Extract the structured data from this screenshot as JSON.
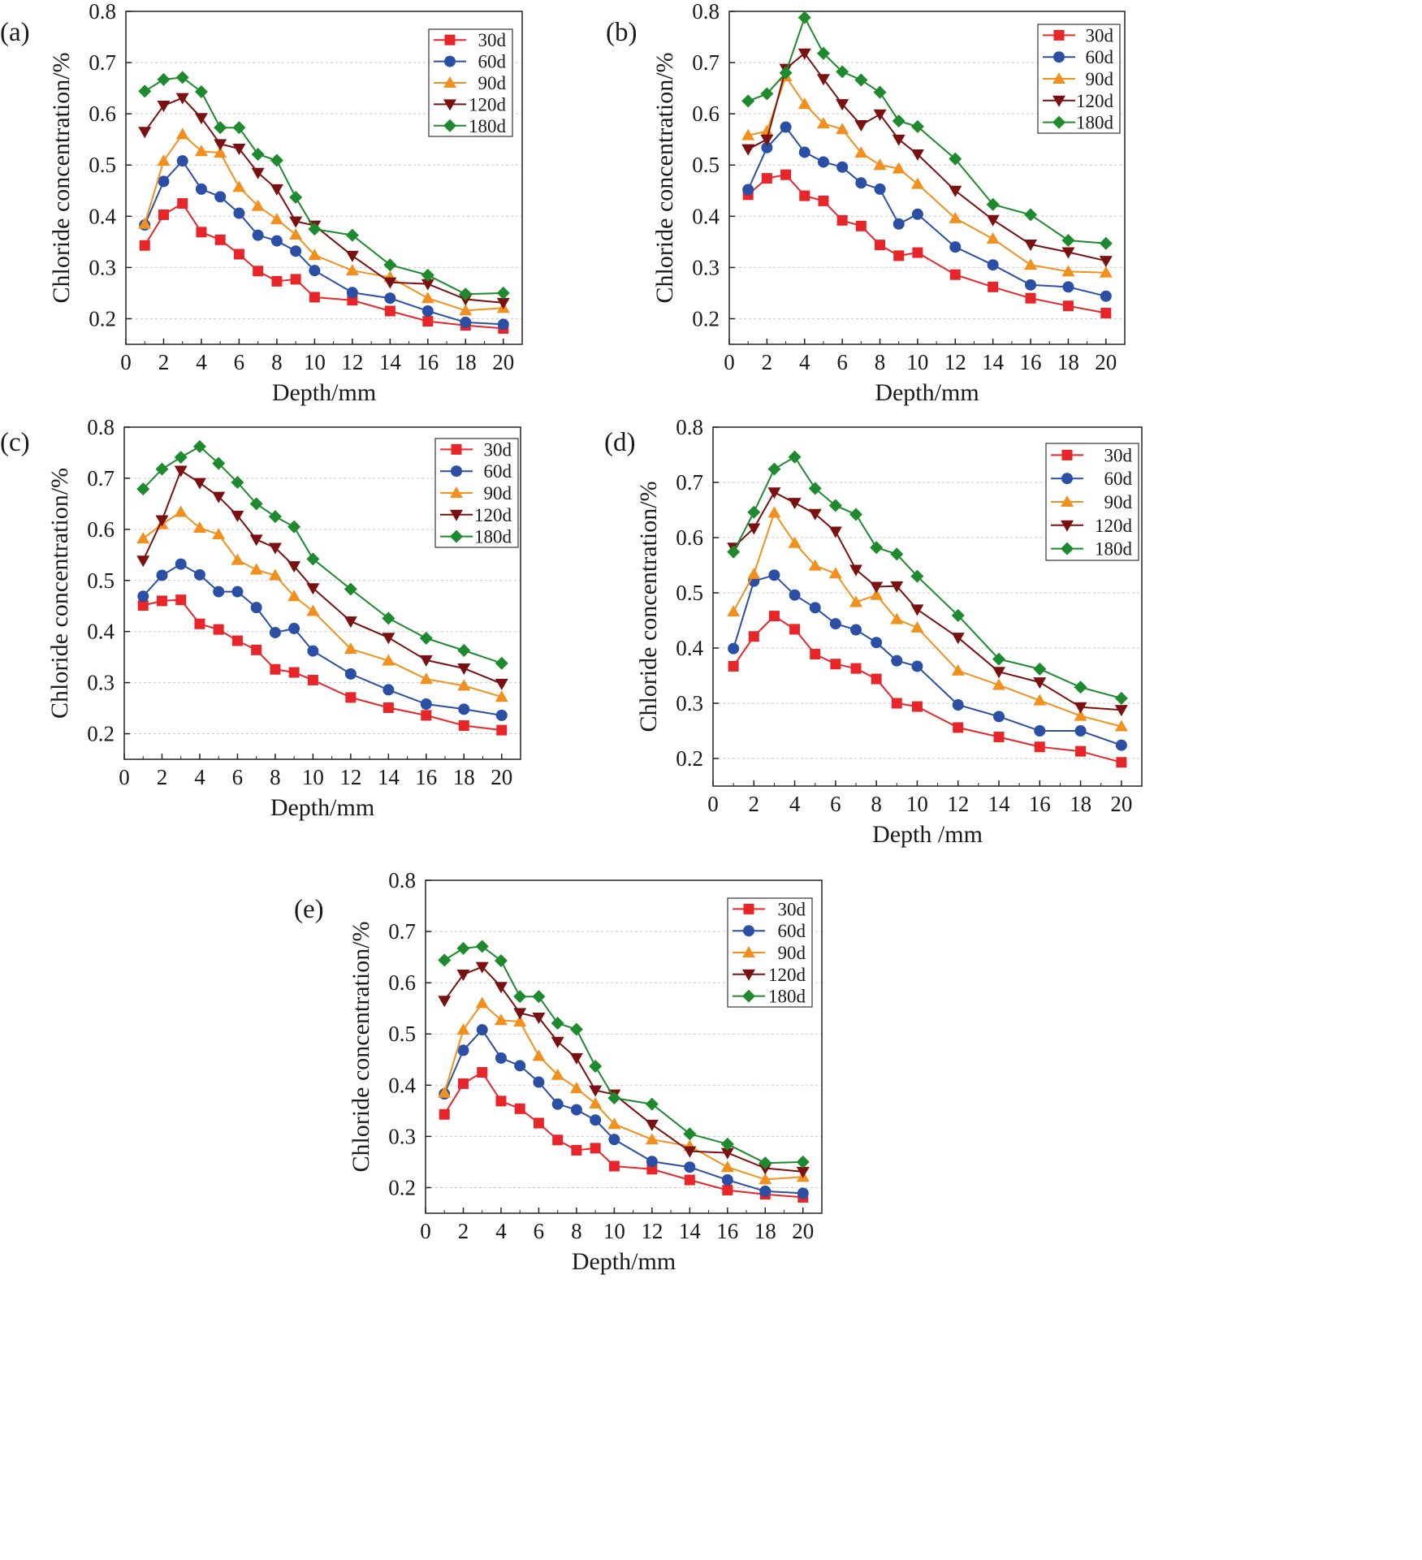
{
  "figure": {
    "series_colors": {
      "30d": "#e8262a",
      "60d": "#2a4fa5",
      "90d": "#f2901d",
      "120d": "#7a1010",
      "180d": "#1d8a2e"
    },
    "series_markers": {
      "30d": "square",
      "60d": "circle",
      "90d": "triangle-up",
      "120d": "triangle-down",
      "180d": "diamond"
    }
  },
  "chart_data": [
    {
      "panel": "(a)",
      "type": "line",
      "xlabel": "Depth/mm",
      "ylabel": "Chloride concentration/%",
      "xlim": [
        0,
        21
      ],
      "ylim": [
        0.15,
        0.8
      ],
      "xticks": [
        "0",
        "2",
        "4",
        "6",
        "8",
        "10",
        "12",
        "14",
        "16",
        "18",
        "20"
      ],
      "yticks": [
        "0.2",
        "0.3",
        "0.4",
        "0.5",
        "0.6",
        "0.7",
        "0.8"
      ],
      "grid": "horizontal dashed",
      "legend": "top-right",
      "x": [
        1,
        2,
        3,
        4,
        5,
        6,
        7,
        8,
        9,
        10,
        12,
        14,
        16,
        18,
        20
      ],
      "series": [
        {
          "name": "30d",
          "values": [
            0.343,
            0.403,
            0.425,
            0.369,
            0.354,
            0.326,
            0.293,
            0.273,
            0.277,
            0.242,
            0.236,
            0.215,
            0.195,
            0.187,
            0.181
          ]
        },
        {
          "name": "60d",
          "values": [
            0.383,
            0.468,
            0.508,
            0.453,
            0.438,
            0.406,
            0.363,
            0.352,
            0.332,
            0.294,
            0.251,
            0.24,
            0.215,
            0.193,
            0.189
          ]
        },
        {
          "name": "90d",
          "values": [
            0.385,
            0.508,
            0.56,
            0.527,
            0.524,
            0.457,
            0.42,
            0.394,
            0.364,
            0.324,
            0.294,
            0.281,
            0.24,
            0.216,
            0.221
          ]
        },
        {
          "name": "120d",
          "values": [
            0.565,
            0.616,
            0.631,
            0.592,
            0.541,
            0.532,
            0.485,
            0.453,
            0.39,
            0.382,
            0.323,
            0.271,
            0.268,
            0.238,
            0.231
          ]
        },
        {
          "name": "180d",
          "values": [
            0.644,
            0.667,
            0.671,
            0.643,
            0.573,
            0.573,
            0.521,
            0.509,
            0.437,
            0.375,
            0.363,
            0.305,
            0.285,
            0.248,
            0.25
          ]
        }
      ]
    },
    {
      "panel": "(b)",
      "type": "line",
      "xlabel": "Depth/mm",
      "ylabel": "Chloride concentration/%",
      "xlim": [
        0,
        21
      ],
      "ylim": [
        0.15,
        0.8
      ],
      "xticks": [
        "0",
        "2",
        "4",
        "6",
        "8",
        "10",
        "12",
        "14",
        "16",
        "18",
        "20"
      ],
      "yticks": [
        "0.2",
        "0.3",
        "0.4",
        "0.5",
        "0.6",
        "0.7",
        "0.8"
      ],
      "grid": "horizontal dashed",
      "legend": "top-right",
      "x": [
        1,
        2,
        3,
        4,
        5,
        6,
        7,
        8,
        9,
        10,
        12,
        14,
        16,
        18,
        20
      ],
      "series": [
        {
          "name": "30d",
          "values": [
            0.442,
            0.474,
            0.481,
            0.44,
            0.43,
            0.392,
            0.381,
            0.344,
            0.323,
            0.329,
            0.286,
            0.262,
            0.24,
            0.225,
            0.211
          ]
        },
        {
          "name": "60d",
          "values": [
            0.452,
            0.534,
            0.574,
            0.525,
            0.506,
            0.496,
            0.465,
            0.453,
            0.385,
            0.404,
            0.34,
            0.305,
            0.266,
            0.262,
            0.244
          ]
        },
        {
          "name": "90d",
          "values": [
            0.558,
            0.566,
            0.673,
            0.619,
            0.581,
            0.57,
            0.524,
            0.5,
            0.493,
            0.463,
            0.396,
            0.356,
            0.305,
            0.292,
            0.29
          ]
        },
        {
          "name": "120d",
          "values": [
            0.531,
            0.55,
            0.688,
            0.718,
            0.668,
            0.619,
            0.578,
            0.599,
            0.55,
            0.521,
            0.45,
            0.393,
            0.345,
            0.33,
            0.313
          ]
        },
        {
          "name": "180d",
          "values": [
            0.625,
            0.639,
            0.68,
            0.788,
            0.718,
            0.682,
            0.666,
            0.642,
            0.586,
            0.575,
            0.512,
            0.423,
            0.403,
            0.353,
            0.347
          ]
        }
      ]
    },
    {
      "panel": "(c)",
      "type": "line",
      "xlabel": "Depth/mm",
      "ylabel": "Chloride concentration/%",
      "xlim": [
        0,
        21
      ],
      "ylim": [
        0.15,
        0.8
      ],
      "xticks": [
        "0",
        "2",
        "4",
        "6",
        "8",
        "10",
        "12",
        "14",
        "16",
        "18",
        "20"
      ],
      "yticks": [
        "0.2",
        "0.3",
        "0.4",
        "0.5",
        "0.6",
        "0.7",
        "0.8"
      ],
      "grid": "horizontal dashed",
      "legend": "top-right",
      "x": [
        1,
        2,
        3,
        4,
        5,
        6,
        7,
        8,
        9,
        10,
        12,
        14,
        16,
        18,
        20
      ],
      "series": [
        {
          "name": "30d",
          "values": [
            0.451,
            0.46,
            0.462,
            0.415,
            0.404,
            0.382,
            0.364,
            0.326,
            0.32,
            0.305,
            0.271,
            0.251,
            0.236,
            0.216,
            0.207
          ]
        },
        {
          "name": "60d",
          "values": [
            0.469,
            0.51,
            0.532,
            0.511,
            0.478,
            0.478,
            0.447,
            0.398,
            0.406,
            0.362,
            0.317,
            0.286,
            0.258,
            0.248,
            0.236
          ]
        },
        {
          "name": "90d",
          "values": [
            0.582,
            0.61,
            0.634,
            0.603,
            0.59,
            0.54,
            0.521,
            0.51,
            0.469,
            0.44,
            0.366,
            0.343,
            0.307,
            0.294,
            0.272
          ]
        },
        {
          "name": "120d",
          "values": [
            0.539,
            0.618,
            0.715,
            0.691,
            0.664,
            0.627,
            0.58,
            0.564,
            0.528,
            0.485,
            0.42,
            0.388,
            0.344,
            0.328,
            0.298
          ]
        },
        {
          "name": "180d",
          "values": [
            0.679,
            0.718,
            0.741,
            0.762,
            0.729,
            0.692,
            0.65,
            0.625,
            0.605,
            0.542,
            0.483,
            0.426,
            0.387,
            0.363,
            0.338
          ]
        }
      ]
    },
    {
      "panel": "(d)",
      "type": "line",
      "xlabel": "Depth /mm",
      "ylabel": "Chloride concentration/%",
      "xlim": [
        0,
        21
      ],
      "ylim": [
        0.15,
        0.8
      ],
      "xticks": [
        "0",
        "2",
        "4",
        "6",
        "8",
        "10",
        "12",
        "14",
        "16",
        "18",
        "20"
      ],
      "yticks": [
        "0.2",
        "0.3",
        "0.4",
        "0.5",
        "0.6",
        "0.7",
        "0.8"
      ],
      "grid": "horizontal dashed",
      "legend": "top-right",
      "x": [
        1,
        2,
        3,
        4,
        5,
        6,
        7,
        8,
        9,
        10,
        12,
        14,
        16,
        18,
        20
      ],
      "series": [
        {
          "name": "30d",
          "values": [
            0.367,
            0.421,
            0.458,
            0.434,
            0.389,
            0.371,
            0.363,
            0.344,
            0.3,
            0.294,
            0.256,
            0.239,
            0.221,
            0.213,
            0.193
          ]
        },
        {
          "name": "60d",
          "values": [
            0.399,
            0.521,
            0.532,
            0.496,
            0.473,
            0.444,
            0.433,
            0.41,
            0.377,
            0.367,
            0.297,
            0.276,
            0.25,
            0.25,
            0.224
          ]
        },
        {
          "name": "90d",
          "values": [
            0.466,
            0.534,
            0.645,
            0.59,
            0.549,
            0.535,
            0.483,
            0.496,
            0.452,
            0.437,
            0.359,
            0.333,
            0.305,
            0.277,
            0.258
          ]
        },
        {
          "name": "120d",
          "values": [
            0.582,
            0.617,
            0.682,
            0.663,
            0.643,
            0.611,
            0.542,
            0.511,
            0.512,
            0.47,
            0.419,
            0.357,
            0.338,
            0.293,
            0.288
          ]
        },
        {
          "name": "180d",
          "values": [
            0.574,
            0.646,
            0.724,
            0.746,
            0.689,
            0.658,
            0.642,
            0.582,
            0.57,
            0.53,
            0.459,
            0.38,
            0.362,
            0.329,
            0.309
          ]
        }
      ]
    },
    {
      "panel": "(e)",
      "type": "line",
      "xlabel": "Depth/mm",
      "ylabel": "Chloride concentration/%",
      "xlim": [
        0,
        21
      ],
      "ylim": [
        0.15,
        0.8
      ],
      "xticks": [
        "0",
        "2",
        "4",
        "6",
        "8",
        "10",
        "12",
        "14",
        "16",
        "18",
        "20"
      ],
      "yticks": [
        "0.2",
        "0.3",
        "0.4",
        "0.5",
        "0.6",
        "0.7",
        "0.8"
      ],
      "grid": "horizontal dashed",
      "legend": "top-right",
      "x": [
        1,
        2,
        3,
        4,
        5,
        6,
        7,
        8,
        9,
        10,
        12,
        14,
        16,
        18,
        20
      ],
      "series": [
        {
          "name": "30d",
          "values": [
            0.343,
            0.403,
            0.425,
            0.369,
            0.354,
            0.326,
            0.293,
            0.273,
            0.277,
            0.242,
            0.236,
            0.215,
            0.195,
            0.187,
            0.181
          ]
        },
        {
          "name": "60d",
          "values": [
            0.383,
            0.468,
            0.508,
            0.453,
            0.438,
            0.406,
            0.363,
            0.352,
            0.332,
            0.294,
            0.251,
            0.24,
            0.215,
            0.193,
            0.189
          ]
        },
        {
          "name": "90d",
          "values": [
            0.385,
            0.508,
            0.56,
            0.527,
            0.524,
            0.457,
            0.42,
            0.394,
            0.364,
            0.324,
            0.294,
            0.281,
            0.24,
            0.216,
            0.221
          ]
        },
        {
          "name": "120d",
          "values": [
            0.565,
            0.616,
            0.631,
            0.592,
            0.541,
            0.532,
            0.485,
            0.453,
            0.39,
            0.382,
            0.323,
            0.271,
            0.268,
            0.238,
            0.231
          ]
        },
        {
          "name": "180d",
          "values": [
            0.644,
            0.667,
            0.671,
            0.643,
            0.573,
            0.573,
            0.521,
            0.509,
            0.437,
            0.375,
            0.363,
            0.305,
            0.285,
            0.248,
            0.25
          ]
        }
      ]
    }
  ]
}
